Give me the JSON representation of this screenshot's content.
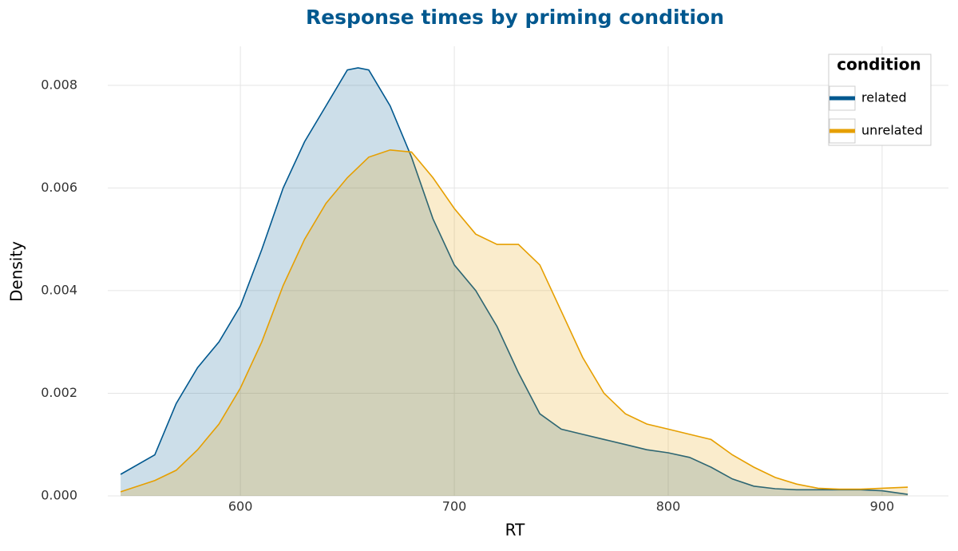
{
  "chart_data": {
    "type": "density",
    "title": "Response times by priming condition",
    "x_label": "RT",
    "y_label": "Density",
    "legend_title": "condition",
    "legend_position": "top-right",
    "grid": true,
    "x": [
      544,
      560,
      570,
      580,
      590,
      600,
      610,
      620,
      630,
      640,
      650,
      655,
      660,
      670,
      680,
      690,
      700,
      710,
      720,
      730,
      740,
      750,
      760,
      770,
      780,
      790,
      800,
      810,
      820,
      830,
      840,
      850,
      860,
      870,
      880,
      890,
      900,
      912
    ],
    "series": [
      {
        "name": "related",
        "color": "#00588f",
        "values": [
          0.00042,
          0.0008,
          0.0018,
          0.0025,
          0.003,
          0.0037,
          0.0048,
          0.006,
          0.0069,
          0.0076,
          0.0083,
          0.00834,
          0.0083,
          0.0076,
          0.0066,
          0.0054,
          0.0045,
          0.004,
          0.0033,
          0.0024,
          0.0016,
          0.0013,
          0.0012,
          0.0011,
          0.001,
          0.0009,
          0.00084,
          0.00075,
          0.00056,
          0.00033,
          0.00019,
          0.00014,
          0.00012,
          0.00012,
          0.00012,
          0.00012,
          0.0001,
          3e-05
        ]
      },
      {
        "name": "unrelated",
        "color": "#e69f00",
        "values": [
          8e-05,
          0.0003,
          0.0005,
          0.0009,
          0.0014,
          0.0021,
          0.003,
          0.0041,
          0.005,
          0.0057,
          0.0062,
          0.0064,
          0.0066,
          0.00674,
          0.0067,
          0.0062,
          0.0056,
          0.0051,
          0.0049,
          0.0049,
          0.0045,
          0.0036,
          0.0027,
          0.002,
          0.0016,
          0.0014,
          0.0013,
          0.0012,
          0.0011,
          0.0008,
          0.00056,
          0.00036,
          0.00023,
          0.00015,
          0.00013,
          0.00013,
          0.00015,
          0.00017
        ]
      }
    ],
    "xlim": [
      538,
      931
    ],
    "xticks": [
      600,
      700,
      800,
      900
    ],
    "ylim": [
      0,
      0.00876
    ],
    "yticks": [
      {
        "value": 0,
        "label": "0.000"
      },
      0.002,
      0.004,
      0.006,
      0.008
    ]
  }
}
